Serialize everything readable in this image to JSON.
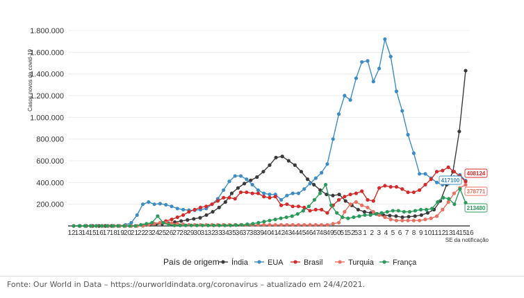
{
  "chart_data": {
    "type": "line",
    "title": "",
    "ylabel": "Casos novos de covid-19",
    "xlabel": "SE da notificação",
    "ylim": [
      0,
      1800000
    ],
    "yticks": [
      {
        "v": 200000,
        "label": "200.000"
      },
      {
        "v": 400000,
        "label": "400.000"
      },
      {
        "v": 600000,
        "label": "600.000"
      },
      {
        "v": 800000,
        "label": "800.000"
      },
      {
        "v": 1000000,
        "label": "1.000.000"
      },
      {
        "v": 1200000,
        "label": "1.200.000"
      },
      {
        "v": 1400000,
        "label": "1.400.000"
      },
      {
        "v": 1600000,
        "label": "1.600.000"
      },
      {
        "v": 1800000,
        "label": "1.800.000"
      }
    ],
    "x_tick_labels": [
      "12",
      "13",
      "14",
      "15",
      "16",
      "17",
      "18",
      "19",
      "20",
      "21",
      "22",
      "23",
      "24",
      "25",
      "26",
      "27",
      "28",
      "29",
      "30",
      "31",
      "32",
      "33",
      "34",
      "35",
      "36",
      "37",
      "38",
      "39",
      "40",
      "41",
      "42",
      "43",
      "44",
      "45",
      "46",
      "47",
      "48",
      "49",
      "50",
      "51",
      "52",
      "53",
      "1",
      "2",
      "3",
      "4",
      "5",
      "6",
      "7",
      "8",
      "9",
      "10",
      "11",
      "12",
      "13",
      "14",
      "15",
      "16"
    ],
    "grid": true,
    "legend": {
      "title": "País de origem",
      "position": "bottom"
    },
    "series": [
      {
        "name": "Índia",
        "color": "#3a3a3a",
        "values": [
          0,
          0,
          0,
          0,
          0,
          0,
          0,
          0,
          0,
          0,
          0,
          5000,
          10000,
          15000,
          20000,
          25000,
          35000,
          45000,
          55000,
          65000,
          75000,
          100000,
          130000,
          170000,
          220000,
          300000,
          350000,
          390000,
          420000,
          450000,
          500000,
          560000,
          630000,
          640000,
          600000,
          560000,
          500000,
          430000,
          380000,
          330000,
          290000,
          280000,
          290000,
          230000,
          190000,
          150000,
          130000,
          120000,
          110000,
          100000,
          95000,
          90000,
          80000,
          85000,
          90000,
          100000,
          120000,
          150000,
          230000,
          380000,
          500000,
          870000,
          1430000
        ]
      },
      {
        "name": "EUA",
        "color": "#3d8cc4",
        "values": [
          0,
          0,
          0,
          0,
          0,
          0,
          0,
          0,
          0,
          10000,
          30000,
          100000,
          200000,
          220000,
          200000,
          205000,
          195000,
          180000,
          160000,
          150000,
          145000,
          145000,
          150000,
          160000,
          200000,
          250000,
          330000,
          410000,
          460000,
          460000,
          430000,
          380000,
          330000,
          300000,
          290000,
          290000,
          240000,
          280000,
          300000,
          300000,
          340000,
          390000,
          440000,
          490000,
          570000,
          800000,
          1030000,
          1200000,
          1160000,
          1360000,
          1510000,
          1520000,
          1330000,
          1450000,
          1720000,
          1560000,
          1240000,
          1060000,
          840000,
          670000,
          480000,
          480000,
          440000,
          400000,
          380000,
          390000,
          450000,
          470000,
          417100
        ]
      },
      {
        "name": "Brasil",
        "color": "#d42a2a",
        "values": [
          0,
          0,
          0,
          0,
          0,
          0,
          0,
          0,
          0,
          0,
          0,
          0,
          5000,
          10000,
          20000,
          30000,
          45000,
          60000,
          80000,
          100000,
          130000,
          150000,
          170000,
          180000,
          200000,
          230000,
          260000,
          260000,
          250000,
          310000,
          310000,
          300000,
          300000,
          270000,
          260000,
          270000,
          190000,
          200000,
          180000,
          180000,
          170000,
          140000,
          150000,
          150000,
          120000,
          190000,
          240000,
          270000,
          290000,
          300000,
          320000,
          240000,
          230000,
          350000,
          370000,
          360000,
          360000,
          340000,
          310000,
          310000,
          330000,
          380000,
          430000,
          500000,
          510000,
          540000,
          500000,
          460000,
          408124
        ]
      },
      {
        "name": "Turquia",
        "color": "#e87060",
        "values": [
          0,
          0,
          0,
          0,
          0,
          0,
          0,
          0,
          0,
          0,
          0,
          0,
          0,
          10000,
          20000,
          30000,
          30000,
          25000,
          20000,
          15000,
          10000,
          10000,
          10000,
          10000,
          10000,
          10000,
          10000,
          10000,
          10000,
          10000,
          10000,
          10000,
          10000,
          10000,
          10000,
          10000,
          10000,
          10000,
          10000,
          10000,
          10000,
          10000,
          10000,
          10000,
          10000,
          20000,
          30000,
          130000,
          200000,
          220000,
          190000,
          170000,
          130000,
          100000,
          80000,
          60000,
          50000,
          50000,
          50000,
          50000,
          50000,
          60000,
          70000,
          90000,
          150000,
          220000,
          300000,
          350000,
          378771
        ]
      },
      {
        "name": "França",
        "color": "#2a9a5a",
        "values": [
          0,
          0,
          0,
          0,
          0,
          0,
          0,
          0,
          0,
          0,
          0,
          0,
          10000,
          20000,
          30000,
          90000,
          30000,
          10000,
          5000,
          5000,
          5000,
          5000,
          5000,
          5000,
          5000,
          5000,
          5000,
          5000,
          5000,
          8000,
          10000,
          15000,
          20000,
          30000,
          40000,
          50000,
          60000,
          70000,
          80000,
          90000,
          110000,
          140000,
          180000,
          240000,
          300000,
          380000,
          190000,
          120000,
          80000,
          70000,
          80000,
          90000,
          100000,
          100000,
          110000,
          120000,
          130000,
          140000,
          140000,
          130000,
          130000,
          140000,
          150000,
          150000,
          160000,
          220000,
          260000,
          250000,
          200000,
          340000,
          213480
        ]
      }
    ],
    "end_labels": [
      {
        "text": "408124",
        "color": "#d42a2a"
      },
      {
        "text": "417100",
        "color": "#3d8cc4"
      },
      {
        "text": "378771",
        "color": "#e87060"
      },
      {
        "text": "213480",
        "color": "#2a9a5a"
      }
    ]
  },
  "caption": "Fonte: Our World in Data – https://ourworldindata.org/coronavirus – atualizado em 24/4/2021."
}
